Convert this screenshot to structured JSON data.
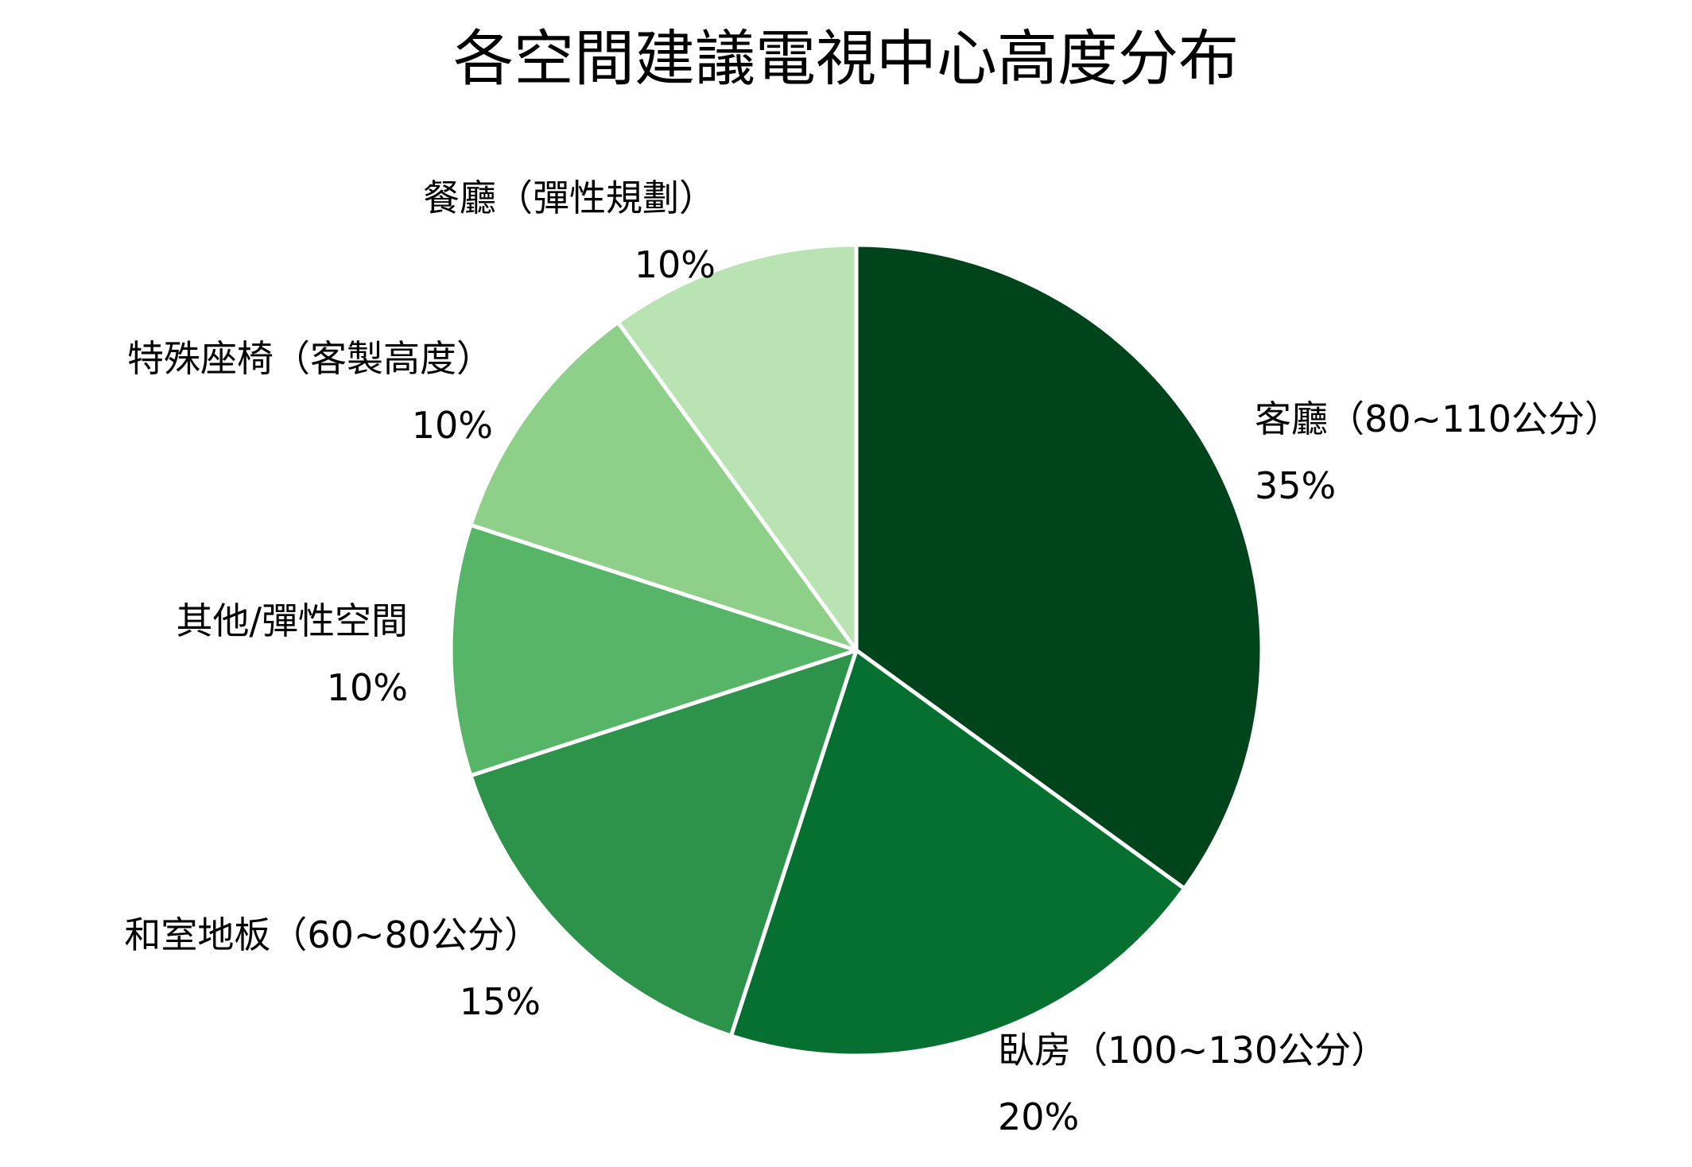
{
  "chart_data": {
    "type": "pie",
    "title": "各空間建議電視中心高度分布",
    "slices": [
      {
        "label": "客廳（80~110公分）",
        "value": 35,
        "value_label": "35%",
        "color": "#00441b"
      },
      {
        "label": "臥房（100~130公分）",
        "value": 20,
        "value_label": "20%",
        "color": "#067030"
      },
      {
        "label": "和室地板（60~80公分）",
        "value": 15,
        "value_label": "15%",
        "color": "#2d934b"
      },
      {
        "label": "其他/彈性空間",
        "value": 10,
        "value_label": "10%",
        "color": "#56b567"
      },
      {
        "label": "特殊座椅（客製高度）",
        "value": 10,
        "value_label": "10%",
        "color": "#8ecf89"
      },
      {
        "label": "餐廳（彈性規劃）",
        "value": 10,
        "value_label": "10%",
        "color": "#b9e3b3"
      }
    ],
    "start_angle": "12 o'clock",
    "direction": "clockwise",
    "legend": "none"
  }
}
